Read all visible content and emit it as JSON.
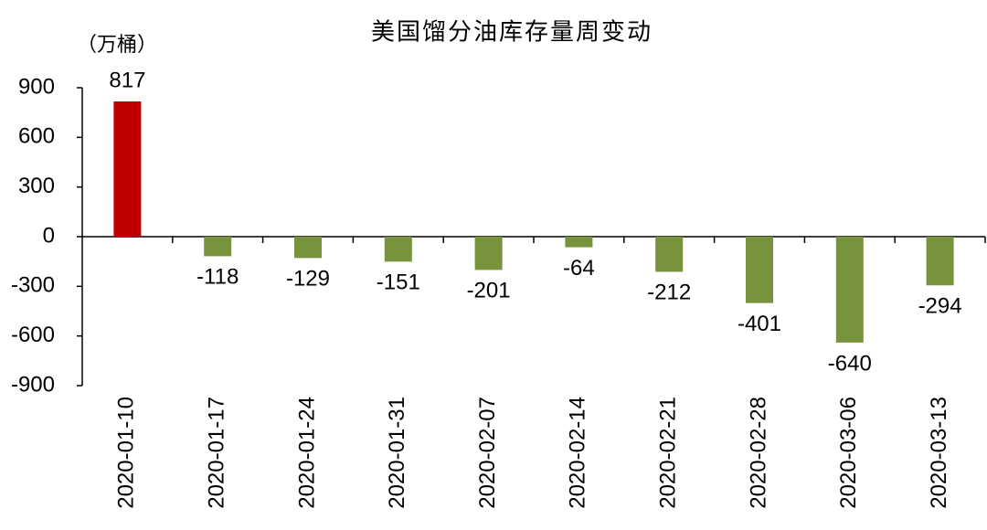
{
  "chart_data": {
    "type": "bar",
    "title": "美国馏分油库存量周变动",
    "y_label": "（万桶）",
    "categories": [
      "2020-01-10",
      "2020-01-17",
      "2020-01-24",
      "2020-01-31",
      "2020-02-07",
      "2020-02-14",
      "2020-02-21",
      "2020-02-28",
      "2020-03-06",
      "2020-03-13"
    ],
    "values": [
      817,
      -118,
      -129,
      -151,
      -201,
      -64,
      -212,
      -401,
      -640,
      -294
    ],
    "colors": [
      "#c00000",
      "#77933c",
      "#77933c",
      "#77933c",
      "#77933c",
      "#77933c",
      "#77933c",
      "#77933c",
      "#77933c",
      "#77933c"
    ],
    "ylim": [
      -900,
      900
    ],
    "yticks": [
      -900,
      -600,
      -300,
      0,
      300,
      600,
      900
    ],
    "grid": false
  }
}
